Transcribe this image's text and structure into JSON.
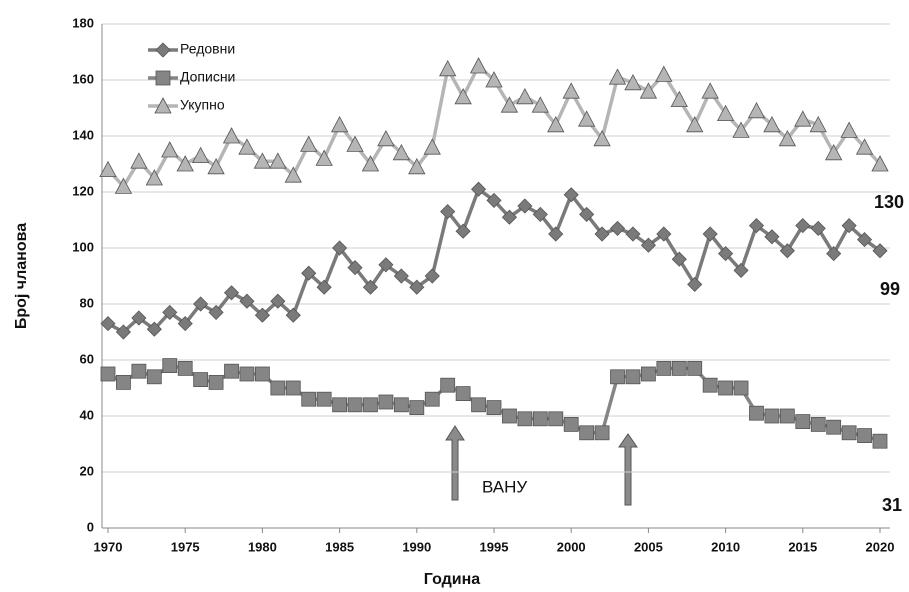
{
  "chart_data": {
    "type": "line",
    "xlabel": "Година",
    "ylabel": "Број чланова",
    "x": [
      1970,
      1971,
      1972,
      1973,
      1974,
      1975,
      1976,
      1977,
      1978,
      1979,
      1980,
      1981,
      1982,
      1983,
      1984,
      1985,
      1986,
      1987,
      1988,
      1989,
      1990,
      1991,
      1992,
      1993,
      1994,
      1995,
      1996,
      1997,
      1998,
      1999,
      2000,
      2001,
      2002,
      2003,
      2004,
      2005,
      2006,
      2007,
      2008,
      2009,
      2010,
      2011,
      2012,
      2013,
      2014,
      2015,
      2016,
      2017,
      2018,
      2019,
      2020
    ],
    "series": [
      {
        "name": "Редовни",
        "color": "#7a7a7a",
        "marker": "diamond",
        "values": [
          73,
          70,
          75,
          71,
          77,
          73,
          80,
          77,
          84,
          81,
          76,
          81,
          76,
          91,
          86,
          100,
          93,
          86,
          94,
          90,
          86,
          90,
          113,
          106,
          121,
          117,
          111,
          115,
          112,
          105,
          119,
          112,
          105,
          107,
          105,
          101,
          105,
          96,
          87,
          105,
          98,
          92,
          108,
          104,
          99,
          108,
          107,
          98,
          108,
          103,
          99
        ]
      },
      {
        "name": "Дописни",
        "color": "#858585",
        "marker": "square",
        "values": [
          55,
          52,
          56,
          54,
          58,
          57,
          53,
          52,
          56,
          55,
          55,
          50,
          50,
          46,
          46,
          44,
          44,
          44,
          45,
          44,
          43,
          46,
          51,
          48,
          44,
          43,
          40,
          39,
          39,
          39,
          37,
          34,
          34,
          54,
          54,
          55,
          57,
          57,
          57,
          51,
          50,
          50,
          41,
          40,
          40,
          38,
          37,
          36,
          34,
          33,
          31
        ]
      },
      {
        "name": "Укупно",
        "color": "#b5b5b5",
        "marker": "triangle",
        "values": [
          128,
          122,
          131,
          125,
          135,
          130,
          133,
          129,
          140,
          136,
          131,
          131,
          126,
          137,
          132,
          144,
          137,
          130,
          139,
          134,
          129,
          136,
          164,
          154,
          165,
          160,
          151,
          154,
          151,
          144,
          156,
          146,
          139,
          161,
          159,
          156,
          162,
          153,
          144,
          156,
          148,
          142,
          149,
          144,
          139,
          146,
          144,
          134,
          142,
          136,
          130
        ]
      }
    ],
    "xlim": [
      1970,
      2020
    ],
    "xticks": [
      1970,
      1975,
      1980,
      1985,
      1990,
      1995,
      2000,
      2005,
      2010,
      2015,
      2020
    ],
    "ylim": [
      0,
      180
    ],
    "yticks": [
      0,
      20,
      40,
      60,
      80,
      100,
      120,
      140,
      160,
      180
    ],
    "grid": true,
    "legend": "upper left",
    "annotations": [
      "130",
      "99",
      "31",
      "ВАНУ"
    ]
  }
}
